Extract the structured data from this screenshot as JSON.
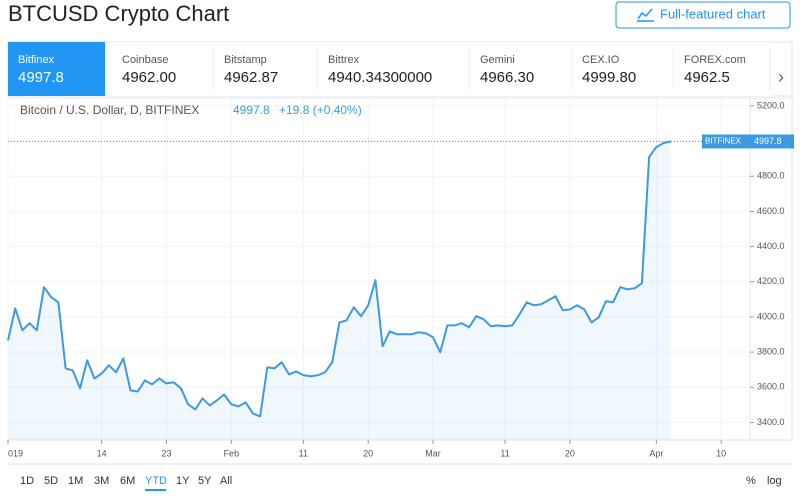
{
  "header": {
    "title": "BTCUSD Crypto Chart",
    "button": "Full-featured chart"
  },
  "tabs": [
    {
      "name": "Bitfinex",
      "price": "4997.8"
    },
    {
      "name": "Coinbase",
      "price": "4962.00"
    },
    {
      "name": "Bitstamp",
      "price": "4962.87"
    },
    {
      "name": "Bittrex",
      "price": "4940.34300000"
    },
    {
      "name": "Gemini",
      "price": "4966.30"
    },
    {
      "name": "CEX.IO",
      "price": "4999.80"
    },
    {
      "name": "FOREX.com",
      "price": "4962.5"
    }
  ],
  "legend": {
    "symbol": "Bitcoin / U.S. Dollar, D, BITFINEX",
    "last": "4997.8",
    "change": "+19.8 (+0.40%)"
  },
  "price_tag": {
    "name": "BITFINEX",
    "value": "4997.8"
  },
  "chart_data": {
    "type": "line",
    "color": "#3d9ae0",
    "grid": true,
    "values": [
      3867,
      4049,
      3924,
      3964,
      3924,
      4169,
      4112,
      4083,
      3708,
      3696,
      3594,
      3753,
      3650,
      3679,
      3725,
      3685,
      3764,
      3582,
      3576,
      3639,
      3616,
      3650,
      3622,
      3628,
      3594,
      3503,
      3474,
      3537,
      3497,
      3525,
      3559,
      3503,
      3491,
      3514,
      3451,
      3434,
      3713,
      3708,
      3742,
      3673,
      3690,
      3668,
      3662,
      3668,
      3685,
      3742,
      3969,
      3981,
      4055,
      4004,
      4066,
      4209,
      3833,
      3918,
      3901,
      3901,
      3901,
      3913,
      3907,
      3884,
      3799,
      3952,
      3952,
      3964,
      3941,
      4004,
      3987,
      3947,
      3952,
      3947,
      3952,
      4015,
      4083,
      4066,
      4072,
      4095,
      4118,
      4038,
      4043,
      4066,
      4043,
      3969,
      3998,
      4089,
      4083,
      4169,
      4157,
      4163,
      4192,
      4909,
      4966,
      4989,
      4997.8
    ],
    "xlim": [
      0,
      103
    ],
    "xticks": [
      {
        "value": 0,
        "label": "019"
      },
      {
        "value": 13,
        "label": "14"
      },
      {
        "value": 22,
        "label": "23"
      },
      {
        "value": 31,
        "label": "Feb"
      },
      {
        "value": 41,
        "label": "11"
      },
      {
        "value": 50,
        "label": "20"
      },
      {
        "value": 59,
        "label": "Mar"
      },
      {
        "value": 69,
        "label": "11"
      },
      {
        "value": 78,
        "label": "20"
      },
      {
        "value": 90,
        "label": "Apr"
      },
      {
        "value": 99,
        "label": "10"
      }
    ],
    "ylim": [
      3300,
      5245
    ],
    "yticks": [
      {
        "value": 3400,
        "label": "3400.0"
      },
      {
        "value": 3600,
        "label": "3600.0"
      },
      {
        "value": 3800,
        "label": "3800.0"
      },
      {
        "value": 4000,
        "label": "4000.0"
      },
      {
        "value": 4200,
        "label": "4200.0"
      },
      {
        "value": 4400,
        "label": "4400.0"
      },
      {
        "value": 4600,
        "label": "4600.0"
      },
      {
        "value": 4800,
        "label": "4800.0"
      },
      {
        "value": 5000,
        "label": "5000.0"
      },
      {
        "value": 5200,
        "label": "5200.0"
      }
    ]
  },
  "ranges": {
    "buttons": [
      "1D",
      "5D",
      "1M",
      "3M",
      "6M",
      "YTD",
      "1Y",
      "5Y",
      "All"
    ],
    "active": "YTD",
    "right": [
      "%",
      "log"
    ]
  }
}
